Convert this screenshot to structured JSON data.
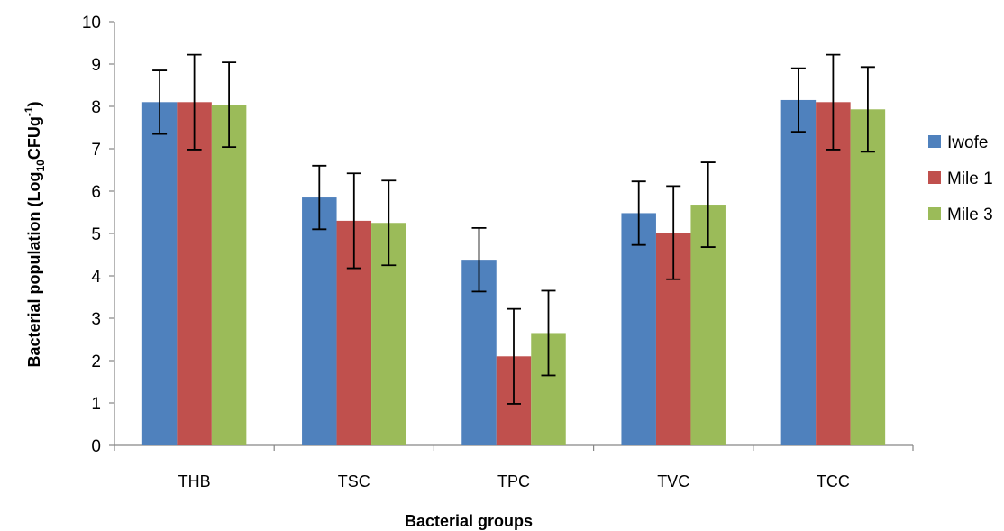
{
  "chart_data": {
    "type": "bar",
    "title": "",
    "xlabel": "Bacterial groups",
    "ylabel": {
      "prefix": "Bacterial population (Log",
      "sub": "10",
      "mid": "CFUg",
      "sup": "-1",
      "suffix": ")"
    },
    "ylim": [
      0,
      10
    ],
    "yticks": [
      "0",
      "1",
      "2",
      "3",
      "4",
      "5",
      "6",
      "7",
      "8",
      "9",
      "10"
    ],
    "categories": [
      "THB",
      "TSC",
      "TPC",
      "TVC",
      "TCC"
    ],
    "series": [
      {
        "name": "Iwofe",
        "color": "#4F81BD",
        "values": [
          8.1,
          5.85,
          4.38,
          5.48,
          8.15
        ],
        "errors": [
          0.75,
          0.75,
          0.75,
          0.75,
          0.75
        ]
      },
      {
        "name": "Mile 1",
        "color": "#C0504D",
        "values": [
          8.1,
          5.3,
          2.1,
          5.02,
          8.1
        ],
        "errors": [
          1.12,
          1.12,
          1.12,
          1.1,
          1.12
        ]
      },
      {
        "name": "Mile 3",
        "color": "#9BBB59",
        "values": [
          8.04,
          5.25,
          2.65,
          5.68,
          7.93
        ],
        "errors": [
          1.0,
          1.0,
          1.0,
          1.0,
          1.0
        ]
      }
    ],
    "legend_position": "right",
    "grid": false
  }
}
